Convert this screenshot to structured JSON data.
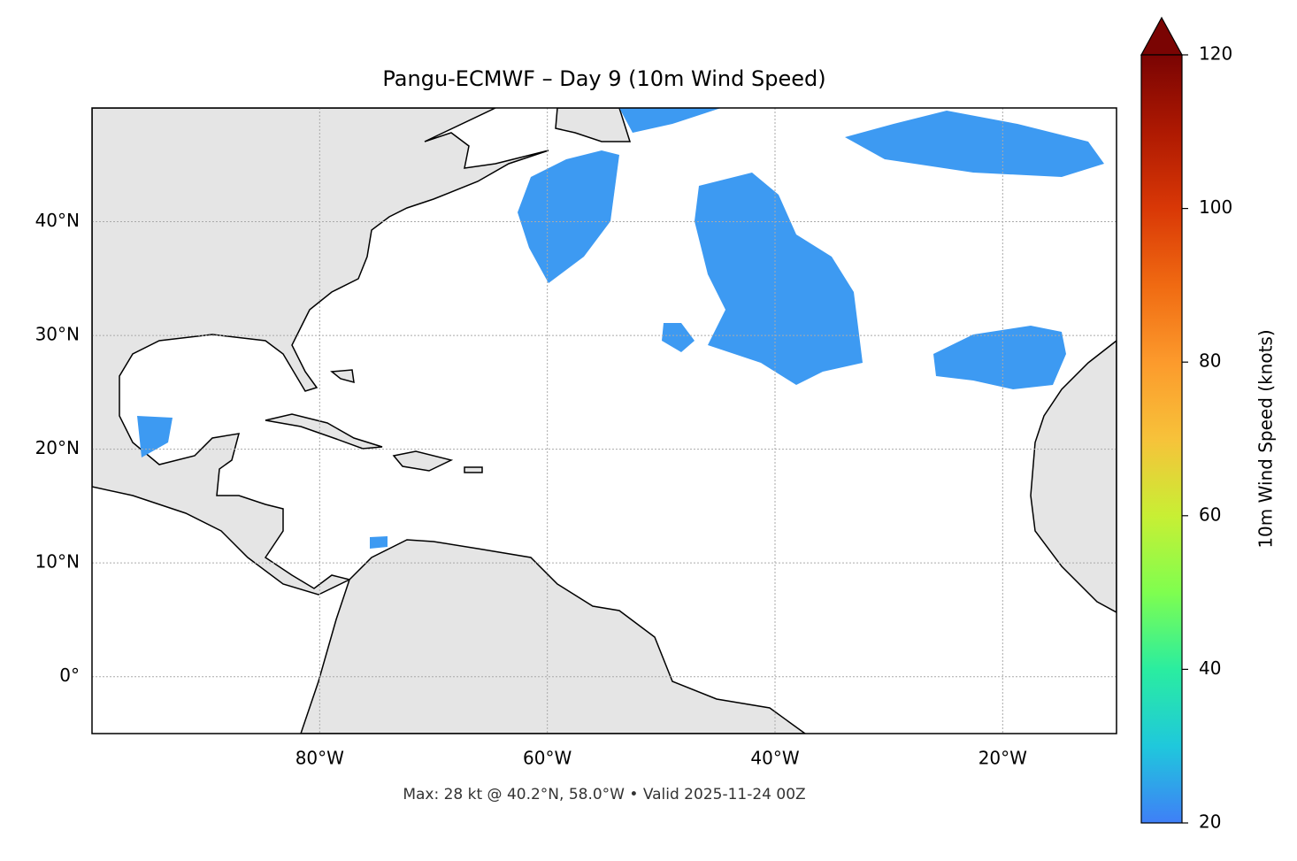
{
  "chart_data": {
    "type": "map",
    "title": "Pangu-ECMWF – Day 9 (10m Wind Speed)",
    "footer": "Max: 28 kt @ 40.2°N, 58.0°W • Valid 2025-11-24 00Z",
    "xlim": [
      -100,
      -10
    ],
    "ylim": [
      -5,
      50
    ],
    "xticks": [
      {
        "value": -80,
        "label": "80°W"
      },
      {
        "value": -60,
        "label": "60°W"
      },
      {
        "value": -40,
        "label": "40°W"
      },
      {
        "value": -20,
        "label": "20°W"
      }
    ],
    "yticks": [
      {
        "value": 0,
        "label": "0°"
      },
      {
        "value": 10,
        "label": "10°N"
      },
      {
        "value": 20,
        "label": "20°N"
      },
      {
        "value": 30,
        "label": "30°N"
      },
      {
        "value": 40,
        "label": "40°N"
      }
    ],
    "grid": true,
    "colorbar": {
      "label": "10m Wind Speed (knots)",
      "lim": [
        20,
        120
      ],
      "ticks": [
        20,
        40,
        60,
        80,
        100,
        120
      ],
      "colormap": [
        "#3f7ff7",
        "#1fc8dc",
        "#2aeda0",
        "#7ffe4f",
        "#c8ef34",
        "#f7c23a",
        "#fc9a2c",
        "#f06a12",
        "#d93806",
        "#ae1902",
        "#7a0403"
      ]
    }
  }
}
